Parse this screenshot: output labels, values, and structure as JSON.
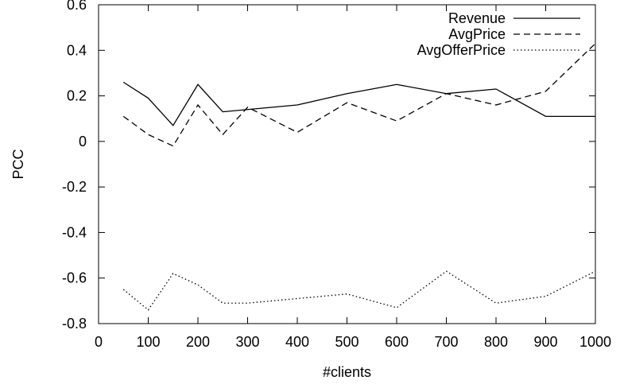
{
  "chart_data": {
    "type": "line",
    "xlabel": "#clients",
    "ylabel": "PCC",
    "xlim": [
      0,
      1000
    ],
    "ylim": [
      -0.8,
      0.6
    ],
    "xticks": [
      0,
      100,
      200,
      300,
      400,
      500,
      600,
      700,
      800,
      900,
      1000
    ],
    "yticks": [
      -0.8,
      -0.6,
      -0.4,
      -0.2,
      0,
      0.2,
      0.4,
      0.6
    ],
    "xtick_labels": [
      "0",
      "100",
      "200",
      "300",
      "400",
      "500",
      "600",
      "700",
      "800",
      "900",
      "1000"
    ],
    "ytick_labels": [
      "-0.8",
      "-0.6",
      "-0.4",
      "-0.2",
      "0",
      "0.2",
      "0.4",
      "0.6"
    ],
    "grid": false,
    "legend_position": "top-right",
    "series": [
      {
        "name": "Revenue",
        "style": "solid",
        "x": [
          50,
          100,
          150,
          200,
          250,
          300,
          400,
          500,
          600,
          700,
          800,
          900,
          1000
        ],
        "y": [
          0.26,
          0.19,
          0.07,
          0.25,
          0.13,
          0.14,
          0.16,
          0.21,
          0.25,
          0.21,
          0.23,
          0.11,
          0.11
        ]
      },
      {
        "name": "AvgPrice",
        "style": "dashed",
        "x": [
          50,
          100,
          150,
          200,
          250,
          300,
          400,
          500,
          600,
          700,
          800,
          900,
          1000
        ],
        "y": [
          0.11,
          0.03,
          -0.02,
          0.16,
          0.03,
          0.15,
          0.04,
          0.17,
          0.09,
          0.21,
          0.16,
          0.22,
          0.43
        ]
      },
      {
        "name": "AvgOfferPrice",
        "style": "dotted",
        "x": [
          50,
          100,
          150,
          200,
          250,
          300,
          400,
          500,
          600,
          700,
          800,
          900,
          1000
        ],
        "y": [
          -0.65,
          -0.74,
          -0.58,
          -0.63,
          -0.71,
          -0.71,
          -0.69,
          -0.67,
          -0.73,
          -0.57,
          -0.71,
          -0.68,
          -0.57
        ]
      }
    ]
  }
}
